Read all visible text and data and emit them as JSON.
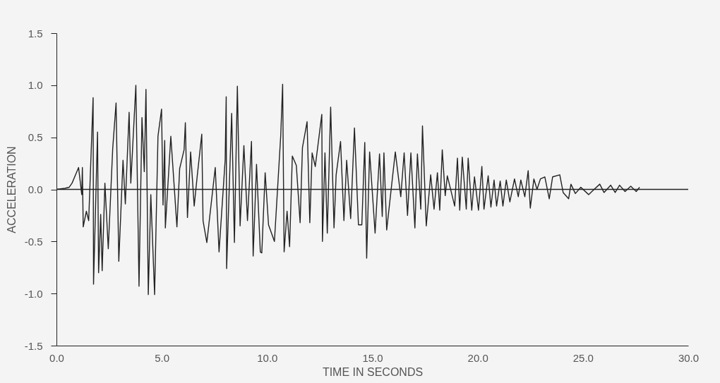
{
  "chart_data": {
    "type": "line",
    "xlabel": "TIME IN SECONDS",
    "ylabel": "ACCELERATION",
    "xlim": [
      0,
      30
    ],
    "ylim": [
      -1.5,
      1.5
    ],
    "xticks": [
      {
        "value": 0,
        "label": "0.0"
      },
      {
        "value": 5,
        "label": "5.0"
      },
      {
        "value": 10,
        "label": "10.0"
      },
      {
        "value": 15,
        "label": "15.0"
      },
      {
        "value": 20,
        "label": "20.0"
      },
      {
        "value": 25,
        "label": "25.0"
      },
      {
        "value": 30,
        "label": "30.0"
      }
    ],
    "yticks": [
      {
        "value": -1.5,
        "label": "-1.5"
      },
      {
        "value": -1,
        "label": "-1.0"
      },
      {
        "value": -0.5,
        "label": "-0.5"
      },
      {
        "value": 0,
        "label": "0.0"
      },
      {
        "value": 0.5,
        "label": "0.5"
      },
      {
        "value": 1,
        "label": "1.0"
      },
      {
        "value": 1.5,
        "label": "1.5"
      }
    ],
    "grid": false,
    "marker": "none",
    "line_style": "solid",
    "ref_lines": [
      {
        "axis": "y",
        "value": 0,
        "color": "#222222"
      }
    ],
    "series": [
      {
        "color": "#222222",
        "x": [
          0,
          0.4,
          0.6,
          0.74,
          1.05,
          1.2,
          1.23,
          1.27,
          1.42,
          1.53,
          1.74,
          1.76,
          1.95,
          2.0,
          2.1,
          2.17,
          2.3,
          2.46,
          2.67,
          2.83,
          2.96,
          3.16,
          3.27,
          3.45,
          3.53,
          3.77,
          3.92,
          4.06,
          4.17,
          4.25,
          4.36,
          4.48,
          4.54,
          4.66,
          4.82,
          4.99,
          5.06,
          5.14,
          5.17,
          5.43,
          5.72,
          5.85,
          6.06,
          6.12,
          6.22,
          6.37,
          6.54,
          6.69,
          6.9,
          6.96,
          7.14,
          7.54,
          7.72,
          8.01,
          8.06,
          8.08,
          8.32,
          8.45,
          8.59,
          8.72,
          8.9,
          9.07,
          9.26,
          9.34,
          9.5,
          9.68,
          9.75,
          9.91,
          10.07,
          10.35,
          10.65,
          10.74,
          10.81,
          10.95,
          11.07,
          11.2,
          11.39,
          11.57,
          11.68,
          11.9,
          12.03,
          12.14,
          12.29,
          12.6,
          12.63,
          12.75,
          12.86,
          13.02,
          13.18,
          13.28,
          13.49,
          13.65,
          13.78,
          13.97,
          14.15,
          14.34,
          14.5,
          14.64,
          14.73,
          14.87,
          15.13,
          15.34,
          15.47,
          15.55,
          15.68,
          16.09,
          16.35,
          16.51,
          16.67,
          16.83,
          17.02,
          17.14,
          17.3,
          17.38,
          17.56,
          17.77,
          17.93,
          18.09,
          18.2,
          18.32,
          18.46,
          18.56,
          18.91,
          19.04,
          19.15,
          19.27,
          19.46,
          19.55,
          19.72,
          19.85,
          20.04,
          20.2,
          20.3,
          20.5,
          20.63,
          20.78,
          20.9,
          21.07,
          21.2,
          21.36,
          21.53,
          21.75,
          21.93,
          22.05,
          22.24,
          22.4,
          22.5,
          22.67,
          22.82,
          22.98,
          23.19,
          23.4,
          23.56,
          23.9,
          24.06,
          24.32,
          24.43,
          24.64,
          24.9,
          25.27,
          25.53,
          25.8,
          26.0,
          26.32,
          26.53,
          26.74,
          27.0,
          27.27,
          27.53,
          27.69
        ],
        "values": [
          0,
          0.01,
          0.02,
          0.06,
          0.21,
          -0.05,
          0.21,
          -0.36,
          -0.21,
          -0.3,
          0.88,
          -0.91,
          0.55,
          -0.8,
          -0.24,
          -0.78,
          0.06,
          -0.57,
          0.39,
          0.83,
          -0.69,
          0.28,
          -0.14,
          0.74,
          0.06,
          1.0,
          -0.93,
          0.69,
          0.17,
          0.96,
          -1.01,
          -0.05,
          -0.37,
          -1.01,
          0.51,
          0.77,
          -0.15,
          0.47,
          -0.37,
          0.51,
          -0.36,
          0.2,
          0.38,
          0.64,
          -0.27,
          0.36,
          -0.16,
          0.14,
          0.53,
          -0.3,
          -0.51,
          0.21,
          -0.6,
          0.28,
          0.89,
          -0.76,
          0.73,
          -0.51,
          0.99,
          -0.35,
          0.42,
          -0.3,
          0.46,
          -0.64,
          0.24,
          -0.6,
          -0.61,
          0.16,
          -0.34,
          -0.5,
          0.52,
          1.01,
          -0.6,
          -0.21,
          -0.55,
          0.32,
          0.23,
          -0.32,
          0.4,
          0.65,
          -0.32,
          0.35,
          0.22,
          0.72,
          -0.5,
          0.35,
          -0.42,
          0.79,
          -0.37,
          0.14,
          0.46,
          -0.3,
          0.28,
          -0.28,
          0.59,
          -0.34,
          -0.34,
          0.45,
          -0.66,
          0.36,
          -0.42,
          0.34,
          -0.26,
          0.35,
          -0.39,
          0.36,
          -0.07,
          0.35,
          -0.25,
          0.35,
          -0.37,
          0.34,
          -0.19,
          0.61,
          -0.35,
          0.14,
          -0.19,
          0.16,
          -0.2,
          0.38,
          -0.06,
          0.13,
          -0.16,
          0.3,
          -0.2,
          0.31,
          -0.19,
          0.3,
          -0.2,
          0.12,
          -0.2,
          0.22,
          -0.19,
          0.13,
          -0.17,
          0.09,
          -0.16,
          0.08,
          -0.16,
          0.09,
          -0.12,
          0.1,
          -0.07,
          0.09,
          -0.07,
          0.18,
          -0.18,
          0.1,
          0,
          0.1,
          0.12,
          -0.09,
          0.12,
          0.14,
          -0.03,
          -0.09,
          0.05,
          -0.04,
          0.02,
          -0.05,
          0,
          0.05,
          -0.03,
          0.04,
          -0.03,
          0.04,
          -0.02,
          0.03,
          -0.02,
          0.02
        ]
      }
    ]
  }
}
